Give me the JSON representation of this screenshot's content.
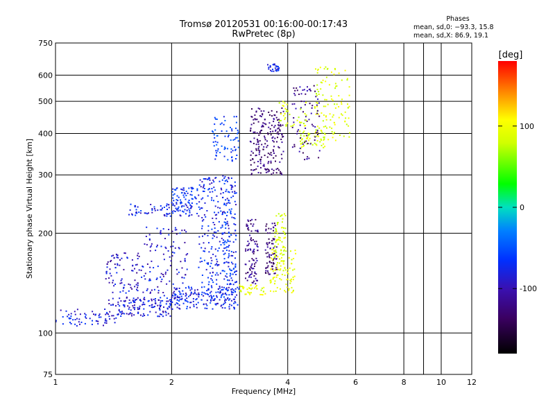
{
  "chart_data": {
    "type": "scatter",
    "title": "Tromsø 20120531 00:16:00-00:17:43",
    "subtitle": "RwPretec (8p)",
    "xlabel": "Frequency [MHz]",
    "ylabel": "Stationary phase Virtual Height [km]",
    "xscale": "log",
    "yscale": "log",
    "xlim": [
      1,
      12
    ],
    "ylim": [
      75,
      750
    ],
    "grid": true,
    "x_ticks": [
      1,
      2,
      3,
      4,
      6,
      8,
      9,
      10,
      12
    ],
    "x_tick_labels": [
      "1",
      "2",
      "4",
      "6",
      "8",
      "10",
      "12"
    ],
    "x_tick_label_values": [
      1,
      2,
      4,
      6,
      8,
      10,
      12
    ],
    "y_ticks": [
      75,
      100,
      200,
      300,
      400,
      500,
      600,
      750
    ],
    "y_tick_labels": [
      "75",
      "100",
      "200",
      "300",
      "400",
      "500",
      "600",
      "750"
    ],
    "colorbar": {
      "label": "[deg]",
      "range": [
        -180,
        180
      ],
      "tick_labels": [
        "100",
        "0",
        "-100"
      ],
      "tick_values": [
        100,
        0,
        -100
      ]
    },
    "phases_box": {
      "heading": "Phases",
      "line1": "mean, sd,0: −93.3, 15.8",
      "line2": "mean, sd,X:  86.9, 19.1"
    },
    "clusters": [
      {
        "x": [
          1.0,
          1.45
        ],
        "y": [
          105,
          118
        ],
        "phase": -110,
        "n": 70
      },
      {
        "x": [
          1.45,
          2.0
        ],
        "y": [
          112,
          128
        ],
        "phase": -110,
        "n": 120
      },
      {
        "x": [
          2.0,
          3.0
        ],
        "y": [
          118,
          138
        ],
        "phase": -105,
        "n": 180
      },
      {
        "x": [
          1.35,
          1.7
        ],
        "y": [
          120,
          175
        ],
        "phase": -115,
        "n": 110
      },
      {
        "x": [
          1.7,
          2.2
        ],
        "y": [
          125,
          210
        ],
        "phase": -112,
        "n": 120
      },
      {
        "x": [
          1.55,
          2.35
        ],
        "y": [
          225,
          245
        ],
        "phase": -105,
        "n": 90
      },
      {
        "x": [
          2.0,
          2.35
        ],
        "y": [
          245,
          275
        ],
        "phase": -100,
        "n": 60
      },
      {
        "x": [
          2.35,
          2.95
        ],
        "y": [
          130,
          300
        ],
        "phase": -105,
        "n": 280
      },
      {
        "x": [
          2.7,
          2.95
        ],
        "y": [
          140,
          250
        ],
        "phase": -95,
        "n": 50
      },
      {
        "x": [
          2.55,
          3.0
        ],
        "y": [
          330,
          450
        ],
        "phase": -95,
        "n": 70
      },
      {
        "x": [
          3.1,
          3.35
        ],
        "y": [
          140,
          220
        ],
        "phase": -130,
        "n": 90
      },
      {
        "x": [
          3.5,
          3.75
        ],
        "y": [
          150,
          215
        ],
        "phase": -135,
        "n": 80
      },
      {
        "x": [
          3.2,
          3.9
        ],
        "y": [
          300,
          480
        ],
        "phase": -135,
        "n": 200
      },
      {
        "x": [
          3.55,
          3.8
        ],
        "y": [
          615,
          650
        ],
        "phase": -105,
        "n": 30
      },
      {
        "x": [
          3.0,
          3.5
        ],
        "y": [
          130,
          140
        ],
        "phase": 90,
        "n": 40
      },
      {
        "x": [
          3.6,
          4.2
        ],
        "y": [
          132,
          180
        ],
        "phase": 90,
        "n": 90
      },
      {
        "x": [
          3.7,
          3.95
        ],
        "y": [
          160,
          235
        ],
        "phase": 85,
        "n": 60
      },
      {
        "x": [
          4.3,
          5.0
        ],
        "y": [
          360,
          410
        ],
        "phase": 85,
        "n": 60
      },
      {
        "x": [
          4.7,
          5.8
        ],
        "y": [
          380,
          640
        ],
        "phase": 88,
        "n": 110
      },
      {
        "x": [
          4.1,
          4.85
        ],
        "y": [
          330,
          560
        ],
        "phase": -130,
        "n": 80
      },
      {
        "x": [
          3.8,
          4.5
        ],
        "y": [
          420,
          500
        ],
        "phase": 85,
        "n": 40
      }
    ]
  }
}
